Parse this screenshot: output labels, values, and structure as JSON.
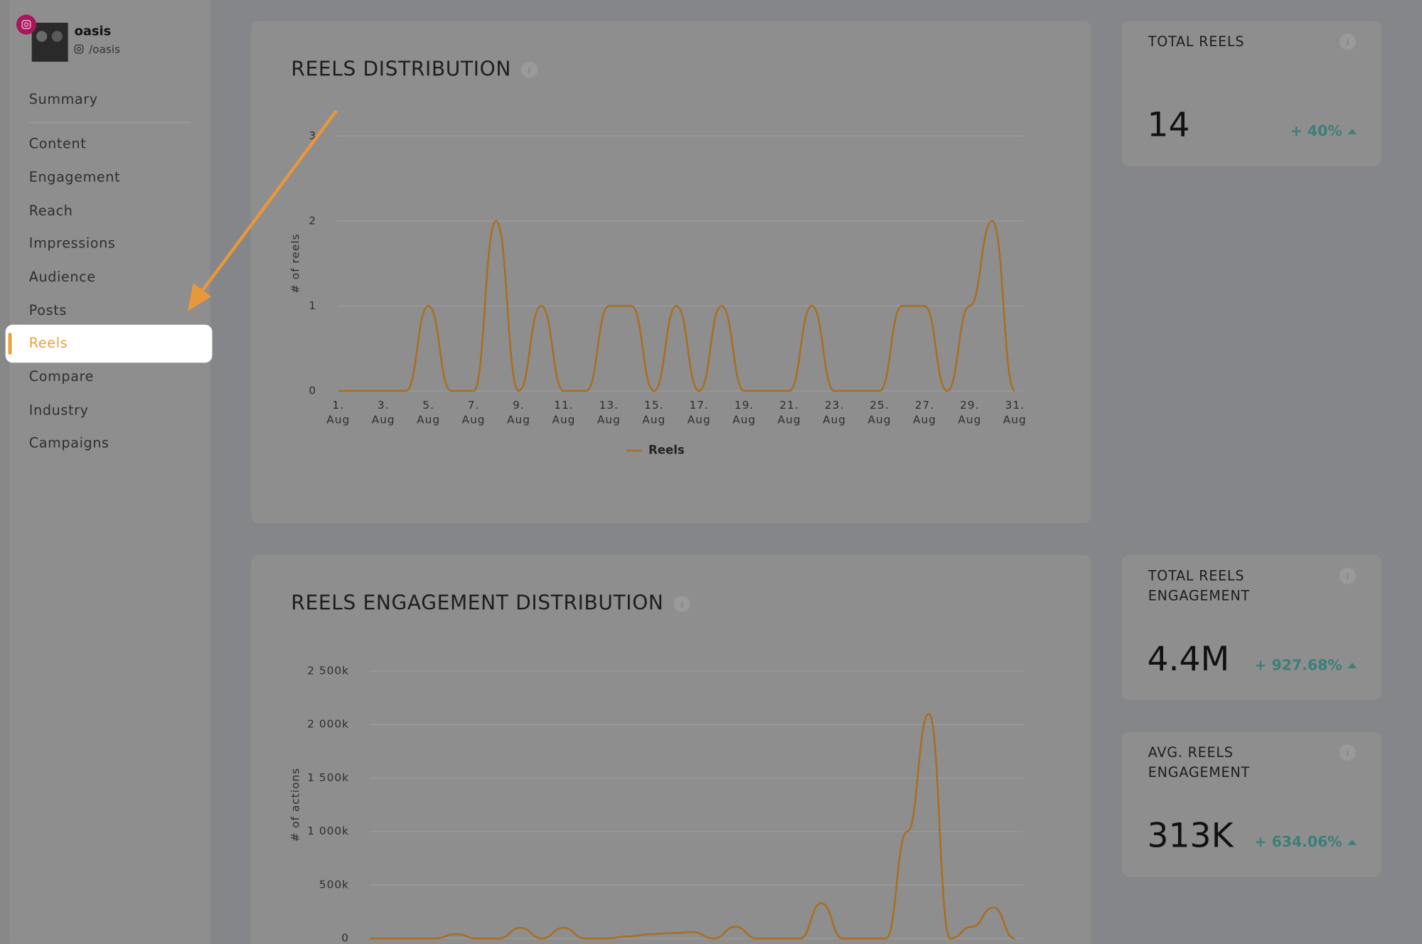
{
  "profile": {
    "name": "oasis",
    "handle": "/oasis"
  },
  "nav": [
    "Summary",
    "Content",
    "Engagement",
    "Reach",
    "Impressions",
    "Audience",
    "Posts",
    "Reels",
    "Compare",
    "Industry",
    "Campaigns"
  ],
  "active_nav": 7,
  "chart_data": [
    {
      "type": "line",
      "title": "REELS DISTRIBUTION",
      "y_label": "# of reels",
      "categories": [
        "1. Aug",
        null,
        "3. Aug",
        null,
        "5. Aug",
        null,
        "7. Aug",
        null,
        "9. Aug",
        null,
        "11. Aug",
        null,
        "13. Aug",
        null,
        "15. Aug",
        null,
        "17. Aug",
        null,
        "19. Aug",
        null,
        "21. Aug",
        null,
        "23. Aug",
        null,
        "25. Aug",
        null,
        "27. Aug",
        null,
        "29. Aug",
        null,
        "31. Aug"
      ],
      "series": [
        {
          "name": "Reels",
          "color": "#a86f22",
          "values": [
            0,
            0,
            0,
            0,
            1,
            0,
            0,
            2,
            0,
            1,
            0,
            0,
            1,
            1,
            0,
            1,
            0,
            1,
            0,
            0,
            0,
            1,
            0,
            0,
            0,
            1,
            1,
            0,
            1,
            2,
            0
          ]
        }
      ],
      "ylim": [
        0,
        3
      ],
      "yticks": [
        0,
        1,
        2,
        3
      ],
      "grid": true
    },
    {
      "type": "line",
      "title": "REELS ENGAGEMENT DISTRIBUTION",
      "y_label": "# of actions",
      "series": [
        {
          "color": "#a86f22",
          "values": [
            0,
            0,
            0,
            0,
            40000,
            0,
            0,
            100000,
            0,
            100000,
            0,
            0,
            20000,
            40000,
            50000,
            60000,
            0,
            110000,
            0,
            0,
            0,
            330000,
            0,
            0,
            0,
            1000000,
            2100000,
            0,
            110000,
            290000,
            0
          ]
        }
      ],
      "ylim": [
        0,
        2500000
      ],
      "yticks": [
        0,
        {
          "value": 500000,
          "label": "500k"
        },
        {
          "value": 1000000,
          "label": "1 000k"
        },
        {
          "value": 1500000,
          "label": "1 500k"
        },
        {
          "value": 2000000,
          "label": "2 000k"
        },
        {
          "value": 2500000,
          "label": "2 500k"
        }
      ],
      "grid": true
    }
  ],
  "cards": [
    {
      "title": "TOTAL REELS",
      "value": "14",
      "change": "+ 40%"
    },
    {
      "title": "TOTAL REELS ENGAGEMENT",
      "value": "4.4M",
      "change": "+ 927.68%"
    },
    {
      "title": "AVG. REELS ENGAGEMENT",
      "value": "313K",
      "change": "+ 634.06%"
    }
  ]
}
